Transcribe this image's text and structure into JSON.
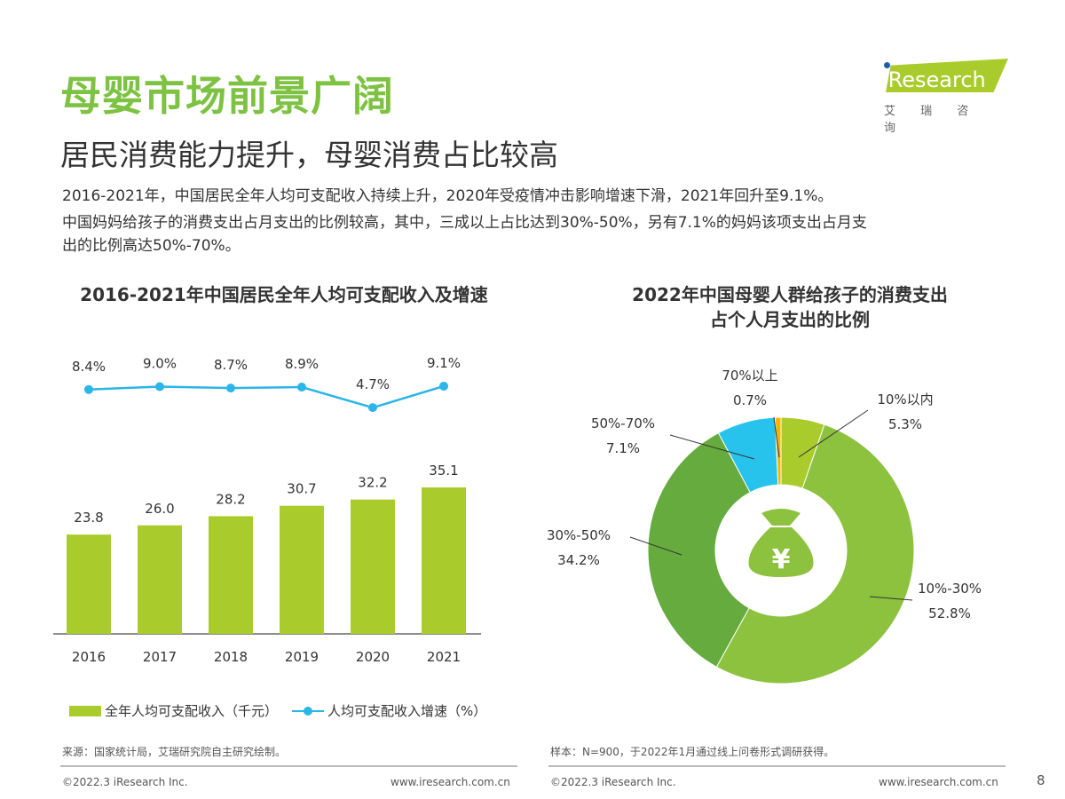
{
  "header": {
    "title": "母婴市场前景广阔",
    "subtitle": "居民消费能力提升，母婴消费占比较高",
    "desc": [
      "2016-2021年，中国居民全年人均可支配收入持续上升，2020年受疫情冲击影响增速下滑，2021年回升至9.1%。",
      "中国妈妈给孩子的消费支出占月支出的比例较高，其中，三成以上占比达到30%-50%，另有7.1%的妈妈该项支出占月支",
      "出的比例高达50%-70%。"
    ]
  },
  "logo": {
    "brand": "iResearch",
    "cn": "艾 瑞 咨 询"
  },
  "chart_data": [
    {
      "type": "bar",
      "title": "2016-2021年中国居民全年人均可支配收入及增速",
      "categories": [
        "2016",
        "2017",
        "2018",
        "2019",
        "2020",
        "2021"
      ],
      "series": [
        {
          "name": "全年人均可支配收入（千元）",
          "type": "bar",
          "values": [
            23.8,
            26.0,
            28.2,
            30.7,
            32.2,
            35.1
          ],
          "labels": [
            "23.8",
            "26.0",
            "28.2",
            "30.7",
            "32.2",
            "35.1"
          ],
          "color": "#a9cc2c"
        },
        {
          "name": "人均可支配收入增速（%）",
          "type": "line",
          "values": [
            8.4,
            9.0,
            8.7,
            8.9,
            4.7,
            9.1
          ],
          "labels": [
            "8.4%",
            "9.0%",
            "8.7%",
            "8.9%",
            "4.7%",
            "9.1%"
          ],
          "color": "#2bb5e8"
        }
      ],
      "legend": "bottom"
    },
    {
      "type": "pie",
      "donut": true,
      "title_lines": [
        "2022年中国母婴人群给孩子的消费支出",
        "占个人月支出的比例"
      ],
      "slices": [
        {
          "label": "10%以内",
          "value": 5.3,
          "text": "5.3%",
          "color": "#a9cc2c"
        },
        {
          "label": "10%-30%",
          "value": 52.8,
          "text": "52.8%",
          "color": "#8dc23f"
        },
        {
          "label": "30%-50%",
          "value": 34.2,
          "text": "34.2%",
          "color": "#66ab3d"
        },
        {
          "label": "50%-70%",
          "value": 7.1,
          "text": "7.1%",
          "color": "#27c3ec"
        },
        {
          "label": "70%以上",
          "value": 0.7,
          "text": "0.7%",
          "color": "#f5b400"
        }
      ],
      "center_icon": "money-bag-yuan-icon",
      "center_symbol": "¥"
    }
  ],
  "footer": {
    "source_left": "来源：国家统计局，艾瑞研究院自主研究绘制。",
    "source_right": "样本：N=900，于2022年1月通过线上问卷形式调研获得。",
    "copyright": "©2022.3 iResearch Inc.",
    "url": "www.iresearch.com.cn",
    "page": "8"
  }
}
